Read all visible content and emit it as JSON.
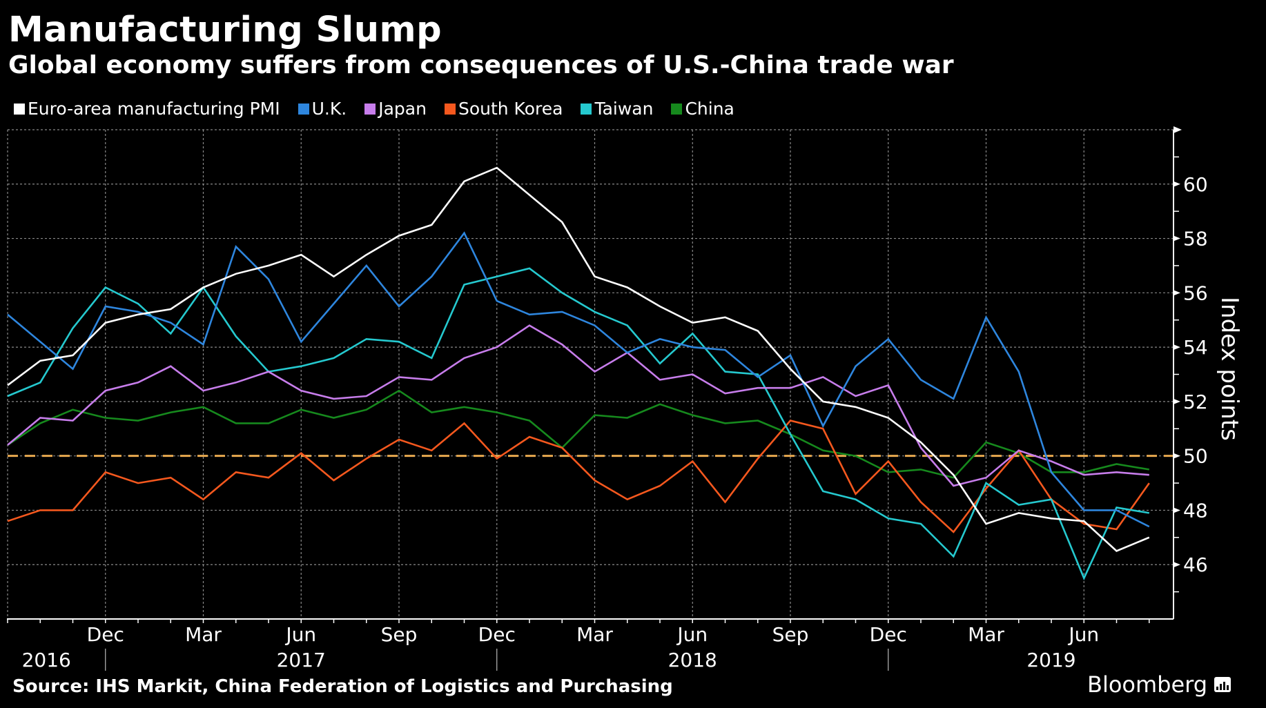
{
  "header": {
    "title": "Manufacturing Slump",
    "subtitle": "Global economy suffers from consequences of U.S.-China trade war"
  },
  "footer": {
    "source": "Source: IHS Markit, China Federation of Logistics and Purchasing",
    "brand": "Bloomberg",
    "brand_icon": "bloomberg-chart-icon"
  },
  "colors": {
    "background": "#000000",
    "reference_line": "#E8A94F",
    "grid": "#8a8a8a"
  },
  "chart_data": {
    "type": "line",
    "title": "Manufacturing Slump",
    "subtitle": "Global economy suffers from consequences of U.S.-China trade war",
    "xlabel": "",
    "ylabel": "Index points",
    "ylim": [
      44,
      62
    ],
    "yticks": [
      46,
      48,
      50,
      52,
      54,
      56,
      58,
      60
    ],
    "y_axis_side": "right",
    "grid": true,
    "legend_position": "top-left",
    "reference_line": {
      "value": 50,
      "style": "dashed"
    },
    "x": [
      "Sep 2016",
      "Oct 2016",
      "Nov 2016",
      "Dec 2016",
      "Jan 2017",
      "Feb 2017",
      "Mar 2017",
      "Apr 2017",
      "May 2017",
      "Jun 2017",
      "Jul 2017",
      "Aug 2017",
      "Sep 2017",
      "Oct 2017",
      "Nov 2017",
      "Dec 2017",
      "Jan 2018",
      "Feb 2018",
      "Mar 2018",
      "Apr 2018",
      "May 2018",
      "Jun 2018",
      "Jul 2018",
      "Aug 2018",
      "Sep 2018",
      "Oct 2018",
      "Nov 2018",
      "Dec 2018",
      "Jan 2019",
      "Feb 2019",
      "Mar 2019",
      "Apr 2019",
      "May 2019",
      "Jun 2019",
      "Jul 2019",
      "Aug 2019"
    ],
    "x_tick_labels": [
      {
        "index": 3,
        "label": "Dec"
      },
      {
        "index": 6,
        "label": "Mar"
      },
      {
        "index": 9,
        "label": "Jun"
      },
      {
        "index": 12,
        "label": "Sep"
      },
      {
        "index": 15,
        "label": "Dec"
      },
      {
        "index": 18,
        "label": "Mar"
      },
      {
        "index": 21,
        "label": "Jun"
      },
      {
        "index": 24,
        "label": "Sep"
      },
      {
        "index": 27,
        "label": "Dec"
      },
      {
        "index": 30,
        "label": "Mar"
      },
      {
        "index": 33,
        "label": "Jun"
      }
    ],
    "year_labels": [
      {
        "center_index": 1,
        "label": "2016"
      },
      {
        "center_index": 9,
        "label": "2017"
      },
      {
        "center_index": 21,
        "label": "2018"
      },
      {
        "center_index": 32,
        "label": "2019"
      }
    ],
    "year_dividers": [
      3.5,
      15.5,
      27.5
    ],
    "series": [
      {
        "name": "Euro-area manufacturing PMI",
        "color": "#FFFFFF",
        "values": [
          52.6,
          53.5,
          53.7,
          54.9,
          55.2,
          55.4,
          56.2,
          56.7,
          57.0,
          57.4,
          56.6,
          57.4,
          58.1,
          58.5,
          60.1,
          60.6,
          59.6,
          58.6,
          56.6,
          56.2,
          55.5,
          54.9,
          55.1,
          54.6,
          53.2,
          52.0,
          51.8,
          51.4,
          50.5,
          49.3,
          47.5,
          47.9,
          47.7,
          47.6,
          46.5,
          47.0
        ]
      },
      {
        "name": "U.K.",
        "color": "#2E86DE",
        "values": [
          55.2,
          54.2,
          53.2,
          55.5,
          55.3,
          54.9,
          54.1,
          57.7,
          56.5,
          54.2,
          55.6,
          57.0,
          55.5,
          56.6,
          58.2,
          55.7,
          55.2,
          55.3,
          54.8,
          53.8,
          54.3,
          54.0,
          53.9,
          52.9,
          53.7,
          51.1,
          53.3,
          54.3,
          52.8,
          52.1,
          55.1,
          53.1,
          49.4,
          48.0,
          48.0,
          47.4
        ]
      },
      {
        "name": "Japan",
        "color": "#C77DEB",
        "values": [
          50.4,
          51.4,
          51.3,
          52.4,
          52.7,
          53.3,
          52.4,
          52.7,
          53.1,
          52.4,
          52.1,
          52.2,
          52.9,
          52.8,
          53.6,
          54.0,
          54.8,
          54.1,
          53.1,
          53.8,
          52.8,
          53.0,
          52.3,
          52.5,
          52.5,
          52.9,
          52.2,
          52.6,
          50.3,
          48.9,
          49.2,
          50.2,
          49.8,
          49.3,
          49.4,
          49.3
        ]
      },
      {
        "name": "South Korea",
        "color": "#F5581E",
        "values": [
          47.6,
          48.0,
          48.0,
          49.4,
          49.0,
          49.2,
          48.4,
          49.4,
          49.2,
          50.1,
          49.1,
          49.9,
          50.6,
          50.2,
          51.2,
          49.9,
          50.7,
          50.3,
          49.1,
          48.4,
          48.9,
          49.8,
          48.3,
          49.9,
          51.3,
          51.0,
          48.6,
          49.8,
          48.3,
          47.2,
          48.8,
          50.2,
          48.4,
          47.5,
          47.3,
          49.0
        ]
      },
      {
        "name": "Taiwan",
        "color": "#25C9CF",
        "values": [
          52.2,
          52.7,
          54.7,
          56.2,
          55.6,
          54.5,
          56.2,
          54.4,
          53.1,
          53.3,
          53.6,
          54.3,
          54.2,
          53.6,
          56.3,
          56.6,
          56.9,
          56.0,
          55.3,
          54.8,
          53.4,
          54.5,
          53.1,
          53.0,
          50.8,
          48.7,
          48.4,
          47.7,
          47.5,
          46.3,
          49.0,
          48.2,
          48.4,
          45.5,
          48.1,
          47.9
        ]
      },
      {
        "name": "China",
        "color": "#16891D",
        "values": [
          50.4,
          51.2,
          51.7,
          51.4,
          51.3,
          51.6,
          51.8,
          51.2,
          51.2,
          51.7,
          51.4,
          51.7,
          52.4,
          51.6,
          51.8,
          51.6,
          51.3,
          50.3,
          51.5,
          51.4,
          51.9,
          51.5,
          51.2,
          51.3,
          50.8,
          50.2,
          50.0,
          49.4,
          49.5,
          49.2,
          50.5,
          50.1,
          49.4,
          49.4,
          49.7,
          49.5
        ]
      }
    ]
  }
}
